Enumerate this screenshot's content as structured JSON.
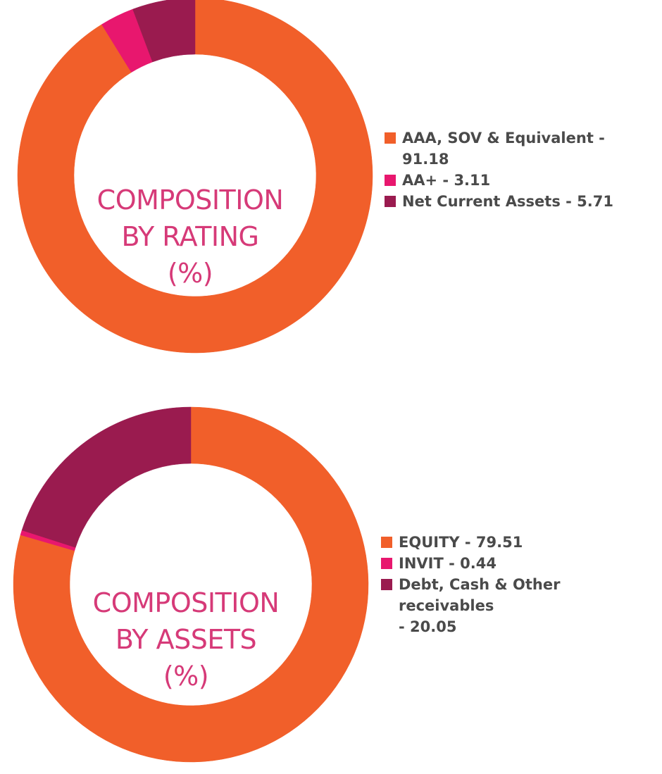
{
  "charts": [
    {
      "title_lines": [
        "COMPOSITION",
        "BY RATING",
        "(%)"
      ],
      "legend_lines": [
        [
          "AAA, SOV & Equivalent -",
          "91.18"
        ],
        [
          "AA+ - 3.11"
        ],
        [
          "Net Current Assets - 5.71"
        ]
      ]
    },
    {
      "title_lines": [
        "COMPOSITION",
        "BY ASSETS",
        "(%)"
      ],
      "legend_lines": [
        [
          "EQUITY - 79.51"
        ],
        [
          "INVIT - 0.44"
        ],
        [
          "Debt, Cash & Other receivables",
          "- 20.05"
        ]
      ]
    }
  ],
  "chart_data": [
    {
      "type": "pie",
      "title": "COMPOSITION BY RATING (%)",
      "categories": [
        "AAA, SOV & Equivalent",
        "AA+",
        "Net Current Assets"
      ],
      "values": [
        91.18,
        3.11,
        5.71
      ],
      "colors": [
        "#f15f2a",
        "#e8176e",
        "#9a1b4f"
      ],
      "legend": "right"
    },
    {
      "type": "pie",
      "title": "COMPOSITION BY ASSETS (%)",
      "categories": [
        "EQUITY",
        "INVIT",
        "Debt, Cash & Other receivables"
      ],
      "values": [
        79.51,
        0.44,
        20.05
      ],
      "colors": [
        "#f15f2a",
        "#e8176e",
        "#9a1b4f"
      ],
      "legend": "right"
    }
  ]
}
